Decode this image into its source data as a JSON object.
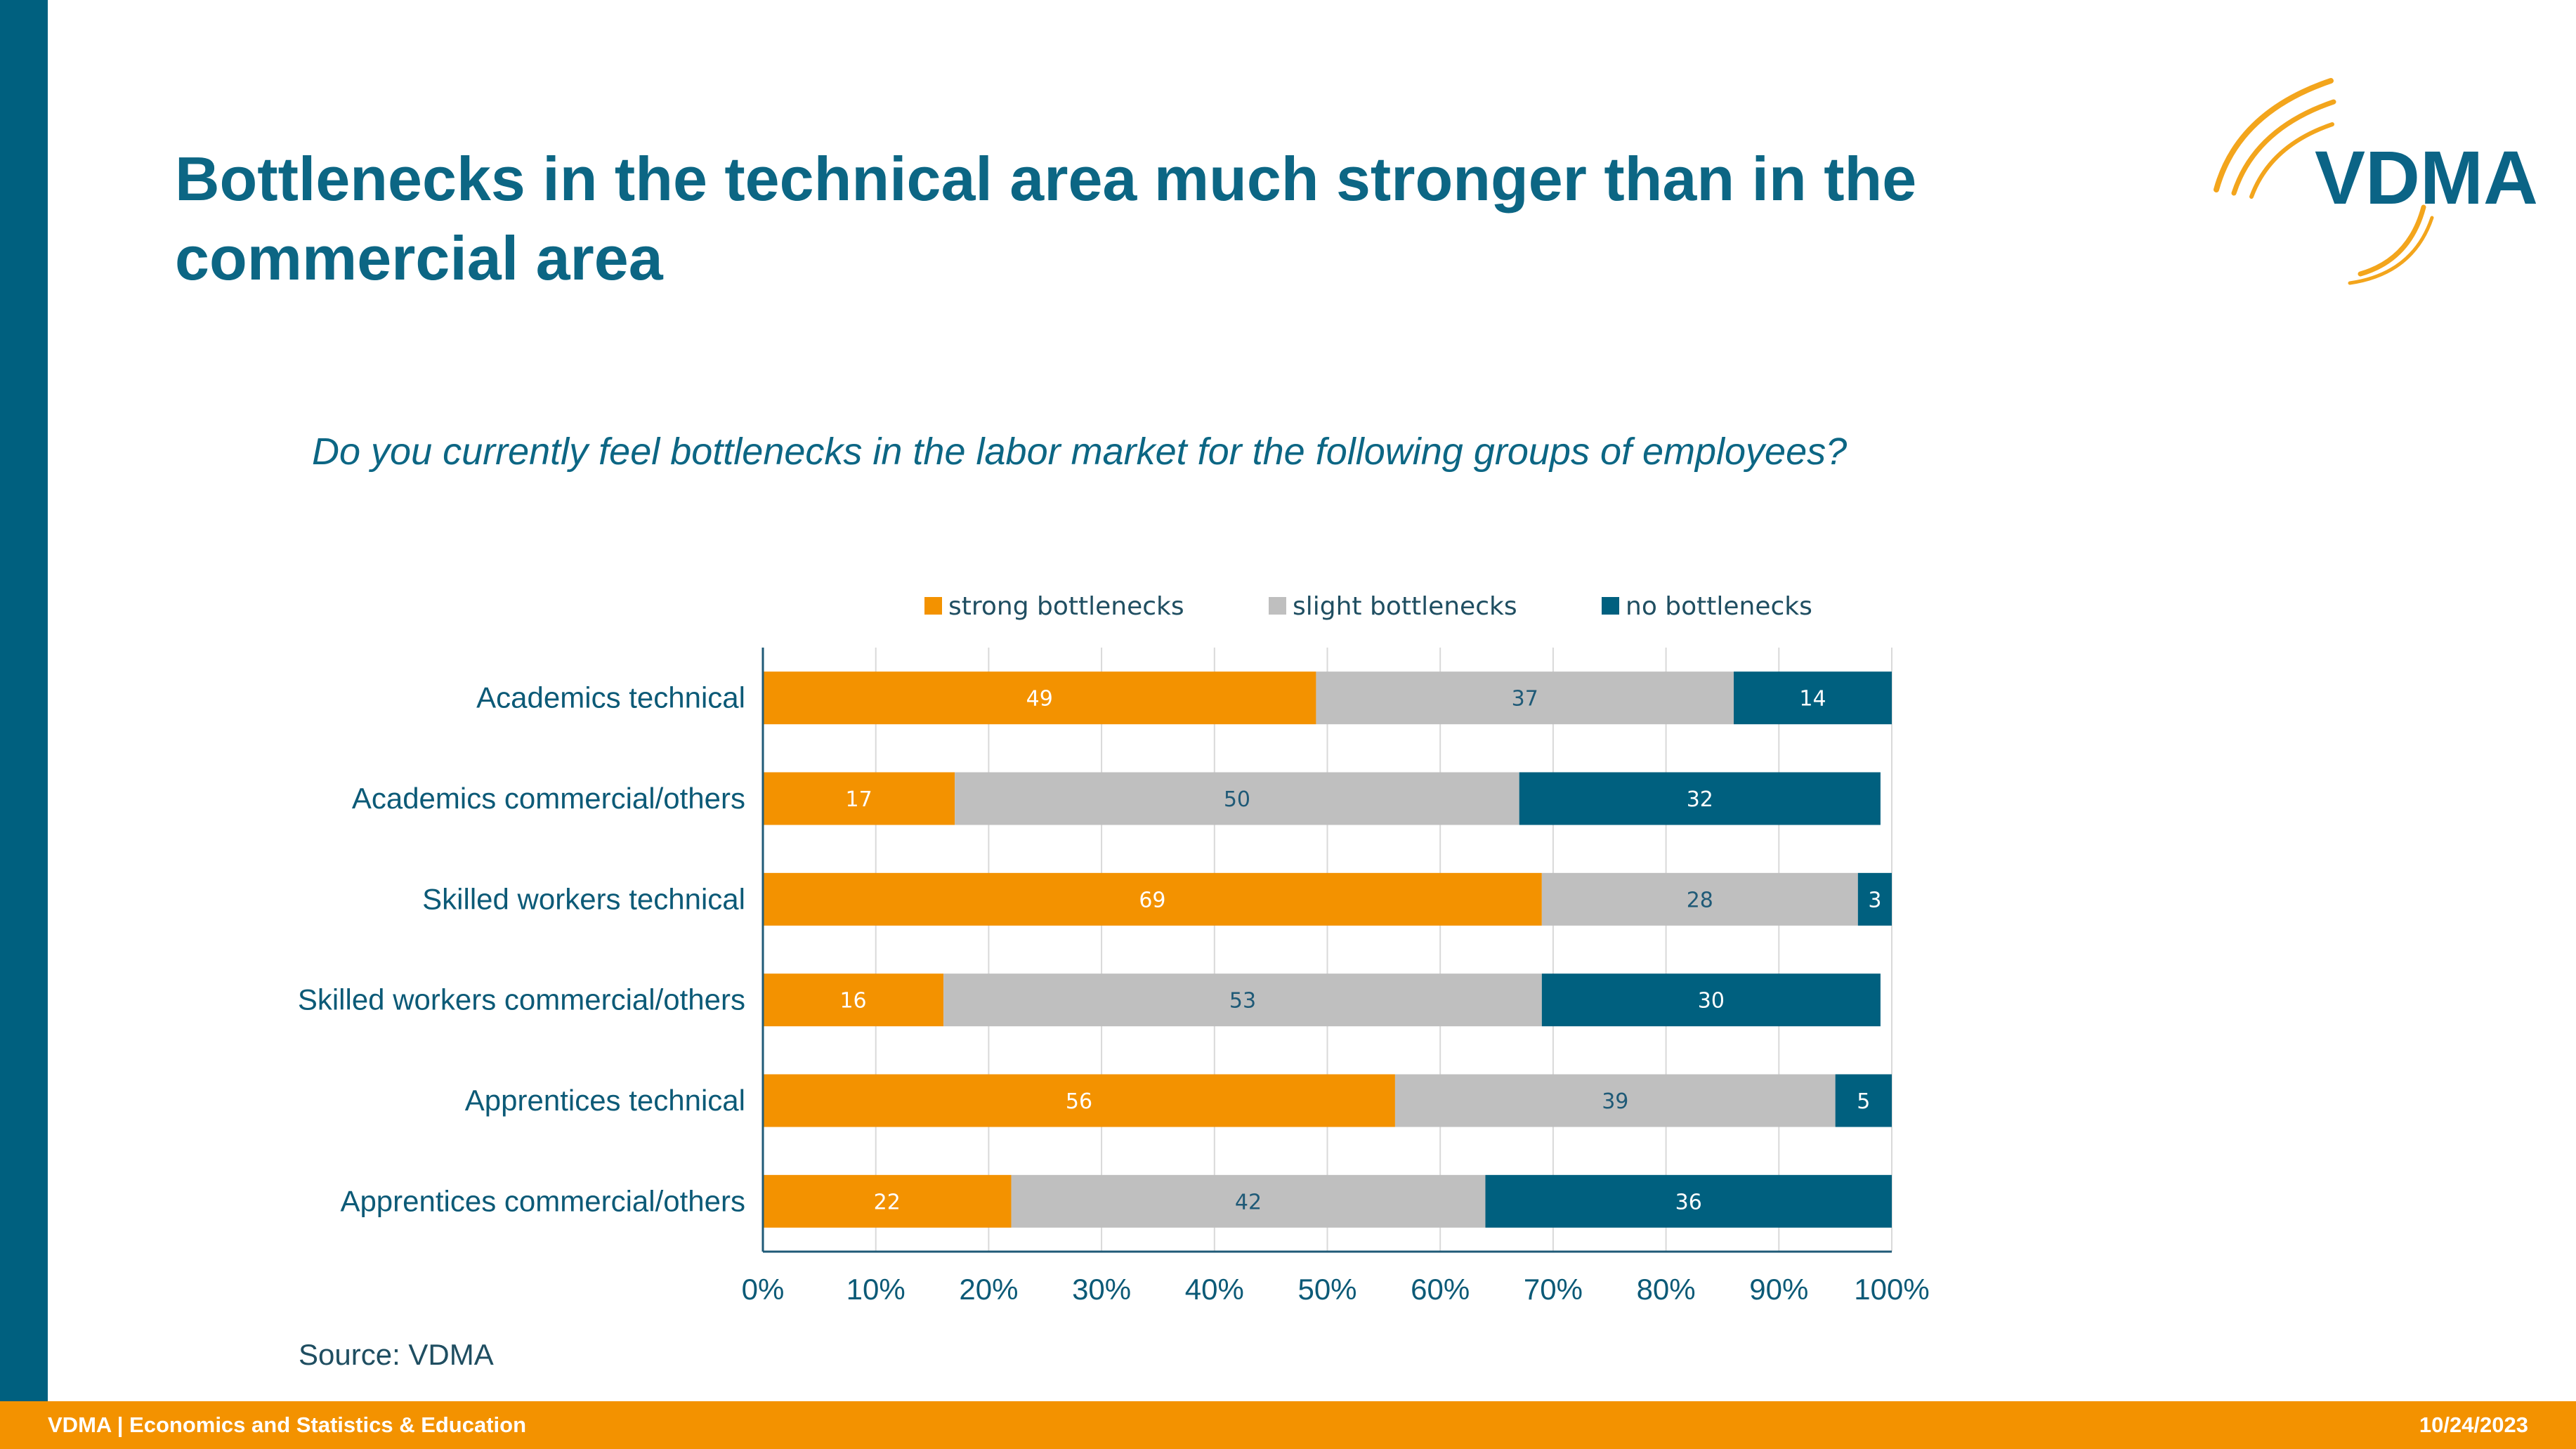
{
  "title": "Bottlenecks in the technical area much stronger than in the commercial area",
  "subtitle": "Do you currently feel bottlenecks in the labor market for the following groups of employees?",
  "logo": {
    "text": "VDMA"
  },
  "source": "Source: VDMA",
  "footer": {
    "left": "VDMA | Economics and Statistics & Education",
    "right": "10/24/2023"
  },
  "colors": {
    "strong": "#f39200",
    "slight": "#bfbfbf",
    "none": "#00607f",
    "accent": "#0c6684"
  },
  "chart_data": {
    "type": "bar",
    "orientation": "horizontal",
    "stacked": "percent",
    "categories": [
      "Academics technical",
      "Academics commercial/others",
      "Skilled workers technical",
      "Skilled workers commercial/others",
      "Apprentices technical",
      "Apprentices commercial/others"
    ],
    "series": [
      {
        "name": "strong bottlenecks",
        "color": "#f39200",
        "label_color": "#ffffff",
        "values": [
          49,
          17,
          69,
          16,
          56,
          22
        ]
      },
      {
        "name": "slight bottlenecks",
        "color": "#bfbfbf",
        "label_color": "#1f5a77",
        "values": [
          37,
          50,
          28,
          53,
          39,
          42
        ]
      },
      {
        "name": "no bottlenecks",
        "color": "#00607f",
        "label_color": "#ffffff",
        "values": [
          14,
          32,
          3,
          30,
          5,
          36
        ]
      }
    ],
    "xticks": [
      "0%",
      "10%",
      "20%",
      "30%",
      "40%",
      "50%",
      "60%",
      "70%",
      "80%",
      "90%",
      "100%"
    ],
    "xlim": [
      0,
      100
    ],
    "legend": "top",
    "grid": true
  }
}
